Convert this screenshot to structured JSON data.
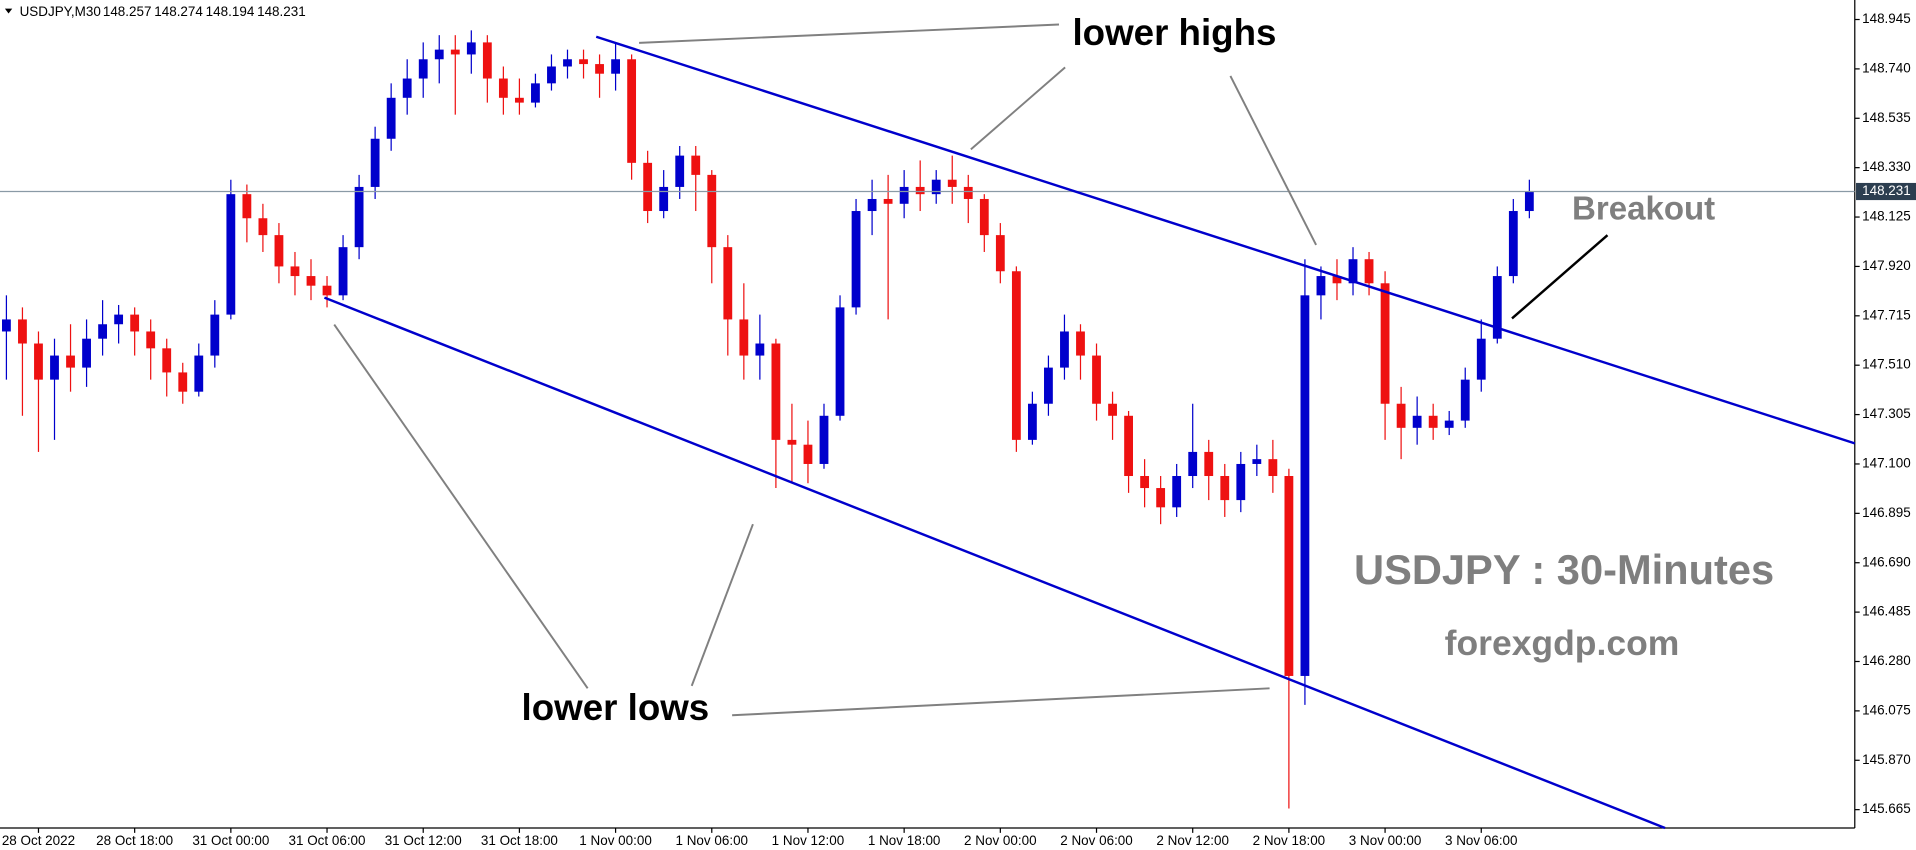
{
  "chart_data": {
    "type": "candlestick",
    "header": {
      "symbol": "USDJPY,M30",
      "ohlc": [
        148.257,
        148.274,
        148.194,
        148.231
      ]
    },
    "annotations": {
      "lower_highs": "lower highs",
      "lower_lows": "lower lows",
      "breakout": "Breakout",
      "title": "USDJPY : 30-Minutes",
      "site": "forexgdp.com"
    },
    "last_price": 148.231,
    "up_color": "#0000cc",
    "down_color": "#ee1111",
    "xlim": [
      -0.4,
      115.3
    ],
    "xticks": [
      {
        "value": 2,
        "label": "28 Oct 2022"
      },
      {
        "value": 8,
        "label": "28 Oct 18:00"
      },
      {
        "value": 14,
        "label": "31 Oct 00:00"
      },
      {
        "value": 20,
        "label": "31 Oct 06:00"
      },
      {
        "value": 26,
        "label": "31 Oct 12:00"
      },
      {
        "value": 32,
        "label": "31 Oct 18:00"
      },
      {
        "value": 38,
        "label": "1 Nov 00:00"
      },
      {
        "value": 44,
        "label": "1 Nov 06:00"
      },
      {
        "value": 50,
        "label": "1 Nov 12:00"
      },
      {
        "value": 56,
        "label": "1 Nov 18:00"
      },
      {
        "value": 62,
        "label": "2 Nov 00:00"
      },
      {
        "value": 68,
        "label": "2 Nov 06:00"
      },
      {
        "value": 74,
        "label": "2 Nov 12:00"
      },
      {
        "value": 80,
        "label": "2 Nov 18:00"
      },
      {
        "value": 86,
        "label": "3 Nov 00:00"
      },
      {
        "value": 92,
        "label": "3 Nov 06:00"
      }
    ],
    "ylim": [
      145.589,
      149.026
    ],
    "yticks": [
      148.945,
      {
        "value": 148.74,
        "label": "148.740"
      },
      148.535,
      {
        "value": 148.33,
        "label": "148.330"
      },
      148.125,
      {
        "value": 147.92,
        "label": "147.920"
      },
      147.715,
      {
        "value": 147.51,
        "label": "147.510"
      },
      147.305,
      {
        "value": 147.1,
        "label": "147.100"
      },
      146.895,
      {
        "value": 146.69,
        "label": "146.690"
      },
      146.485,
      {
        "value": 146.28,
        "label": "146.280"
      },
      146.075,
      {
        "value": 145.87,
        "label": "145.870"
      },
      145.665
    ],
    "open": [
      147.65,
      147.7,
      147.6,
      147.45,
      147.55,
      147.5,
      147.62,
      147.68,
      147.72,
      147.65,
      147.58,
      147.48,
      147.4,
      147.55,
      147.72,
      148.22,
      148.12,
      148.05,
      147.92,
      147.88,
      147.84,
      147.8,
      148.0,
      148.25,
      148.45,
      148.62,
      148.7,
      148.78,
      148.82,
      148.8,
      148.85,
      148.7,
      148.62,
      148.6,
      148.68,
      148.75,
      148.78,
      148.76,
      148.72,
      148.78,
      148.35,
      148.15,
      148.25,
      148.38,
      148.3,
      148.0,
      147.7,
      147.55,
      147.6,
      147.2,
      147.18,
      147.1,
      147.3,
      147.75,
      148.15,
      148.2,
      148.18,
      148.25,
      148.22,
      148.28,
      148.25,
      148.2,
      148.05,
      147.9,
      147.2,
      147.35,
      147.5,
      147.65,
      147.55,
      147.35,
      147.3,
      147.05,
      147.0,
      146.92,
      147.05,
      147.15,
      147.05,
      146.95,
      147.1,
      147.12,
      147.05,
      146.22,
      147.8,
      147.88,
      147.85,
      147.95,
      147.85,
      147.35,
      147.25,
      147.3,
      147.25,
      147.28,
      147.45,
      147.62,
      147.88,
      148.15
    ],
    "high": [
      147.8,
      147.75,
      147.65,
      147.62,
      147.68,
      147.7,
      147.78,
      147.76,
      147.75,
      147.7,
      147.62,
      147.52,
      147.6,
      147.78,
      148.28,
      148.26,
      148.18,
      148.1,
      147.98,
      147.95,
      147.88,
      148.05,
      148.3,
      148.5,
      148.68,
      148.78,
      148.85,
      148.88,
      148.88,
      148.9,
      148.88,
      148.75,
      148.7,
      148.72,
      148.8,
      148.82,
      148.82,
      148.8,
      148.85,
      148.8,
      148.4,
      148.32,
      148.42,
      148.42,
      148.32,
      148.05,
      147.85,
      147.72,
      147.62,
      147.35,
      147.28,
      147.35,
      147.8,
      148.2,
      148.28,
      148.3,
      148.32,
      148.36,
      148.32,
      148.38,
      148.3,
      148.22,
      148.1,
      147.92,
      147.4,
      147.55,
      147.72,
      147.68,
      147.6,
      147.4,
      147.32,
      147.12,
      147.05,
      147.1,
      147.35,
      147.2,
      147.1,
      147.15,
      147.18,
      147.2,
      147.08,
      147.95,
      147.92,
      147.95,
      148.0,
      147.98,
      147.9,
      147.42,
      147.38,
      147.35,
      147.32,
      147.5,
      147.7,
      147.92,
      148.2,
      148.28
    ],
    "low": [
      147.45,
      147.3,
      147.15,
      147.2,
      147.4,
      147.42,
      147.55,
      147.6,
      147.55,
      147.45,
      147.38,
      147.35,
      147.38,
      147.5,
      147.7,
      148.02,
      147.98,
      147.85,
      147.8,
      147.78,
      147.75,
      147.78,
      147.95,
      148.2,
      148.4,
      148.55,
      148.62,
      148.68,
      148.55,
      148.72,
      148.6,
      148.55,
      148.55,
      148.58,
      148.65,
      148.7,
      148.7,
      148.62,
      148.65,
      148.28,
      148.1,
      148.12,
      148.2,
      148.15,
      147.85,
      147.55,
      147.45,
      147.45,
      147.0,
      147.02,
      147.02,
      147.08,
      147.28,
      147.72,
      148.05,
      147.7,
      148.12,
      148.15,
      148.18,
      148.18,
      148.1,
      147.98,
      147.85,
      147.15,
      147.18,
      147.3,
      147.45,
      147.45,
      147.28,
      147.2,
      146.98,
      146.92,
      146.85,
      146.88,
      147.0,
      146.95,
      146.88,
      146.9,
      147.05,
      146.98,
      145.67,
      146.1,
      147.7,
      147.78,
      147.8,
      147.8,
      147.2,
      147.12,
      147.18,
      147.2,
      147.22,
      147.25,
      147.4,
      147.6,
      147.85,
      148.12
    ],
    "close": [
      147.7,
      147.6,
      147.45,
      147.55,
      147.5,
      147.62,
      147.68,
      147.72,
      147.65,
      147.58,
      147.48,
      147.4,
      147.55,
      147.72,
      148.22,
      148.12,
      148.05,
      147.92,
      147.88,
      147.84,
      147.8,
      148.0,
      148.25,
      148.45,
      148.62,
      148.7,
      148.78,
      148.82,
      148.8,
      148.85,
      148.7,
      148.62,
      148.6,
      148.68,
      148.75,
      148.78,
      148.76,
      148.72,
      148.78,
      148.35,
      148.15,
      148.25,
      148.38,
      148.3,
      148.0,
      147.7,
      147.55,
      147.6,
      147.2,
      147.18,
      147.1,
      147.3,
      147.75,
      148.15,
      148.2,
      148.18,
      148.25,
      148.22,
      148.28,
      148.25,
      148.2,
      148.05,
      147.9,
      147.2,
      147.35,
      147.5,
      147.65,
      147.55,
      147.35,
      147.3,
      147.05,
      147.0,
      146.92,
      147.05,
      147.15,
      147.05,
      146.95,
      147.1,
      147.12,
      147.05,
      146.22,
      147.8,
      147.88,
      147.85,
      147.95,
      147.85,
      147.35,
      147.25,
      147.3,
      147.25,
      147.28,
      147.45,
      147.62,
      147.88,
      148.15,
      148.23
    ]
  }
}
